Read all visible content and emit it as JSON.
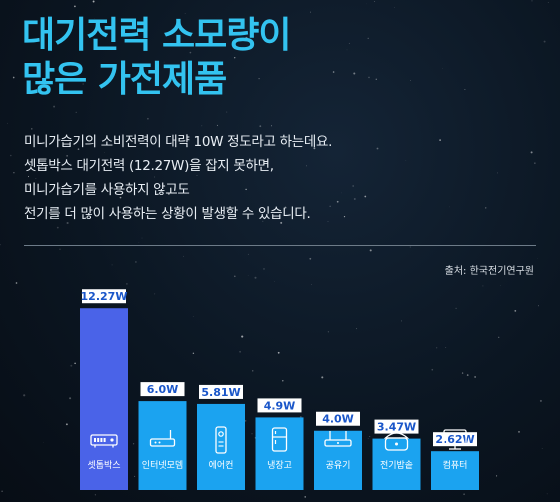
{
  "title_lines": [
    "대기전력 소모량이",
    "많은 가전제품"
  ],
  "description_lines": [
    "미니가습기의 소비전력이 대략 10W 정도라고 하는데요.",
    "셋톱박스 대기전력 (12.27W)을 잡지 못하면,",
    "미니가습기를 사용하지 않고도",
    "전기를 더 많이 사용하는 상황이 발생할 수 있습니다."
  ],
  "source": "출처: 한국전기연구원",
  "colors": {
    "title": "#33c3f0",
    "bar_highlight": "#4a63e8",
    "bar_normal": "#1ba3f0",
    "label_text": "#1a56c9"
  },
  "chart_data": {
    "type": "bar",
    "title": "",
    "xlabel": "",
    "ylabel": "",
    "categories": [
      "셋톱박스",
      "인터넷모뎀",
      "에어컨",
      "냉장고",
      "공유기",
      "전기밥솥",
      "컴퓨터"
    ],
    "values": [
      12.27,
      6.0,
      5.81,
      4.9,
      4.0,
      3.47,
      2.62
    ],
    "value_labels": [
      "12.27W",
      "6.0W",
      "5.81W",
      "4.9W",
      "4.0W",
      "3.47W",
      "2.62W"
    ],
    "icons": [
      "settop-box-icon",
      "modem-icon",
      "air-conditioner-icon",
      "refrigerator-icon",
      "router-icon",
      "rice-cooker-icon",
      "computer-icon"
    ],
    "highlight_index": 0,
    "ylim": [
      0,
      13.5
    ],
    "grid": false,
    "legend": "none"
  }
}
